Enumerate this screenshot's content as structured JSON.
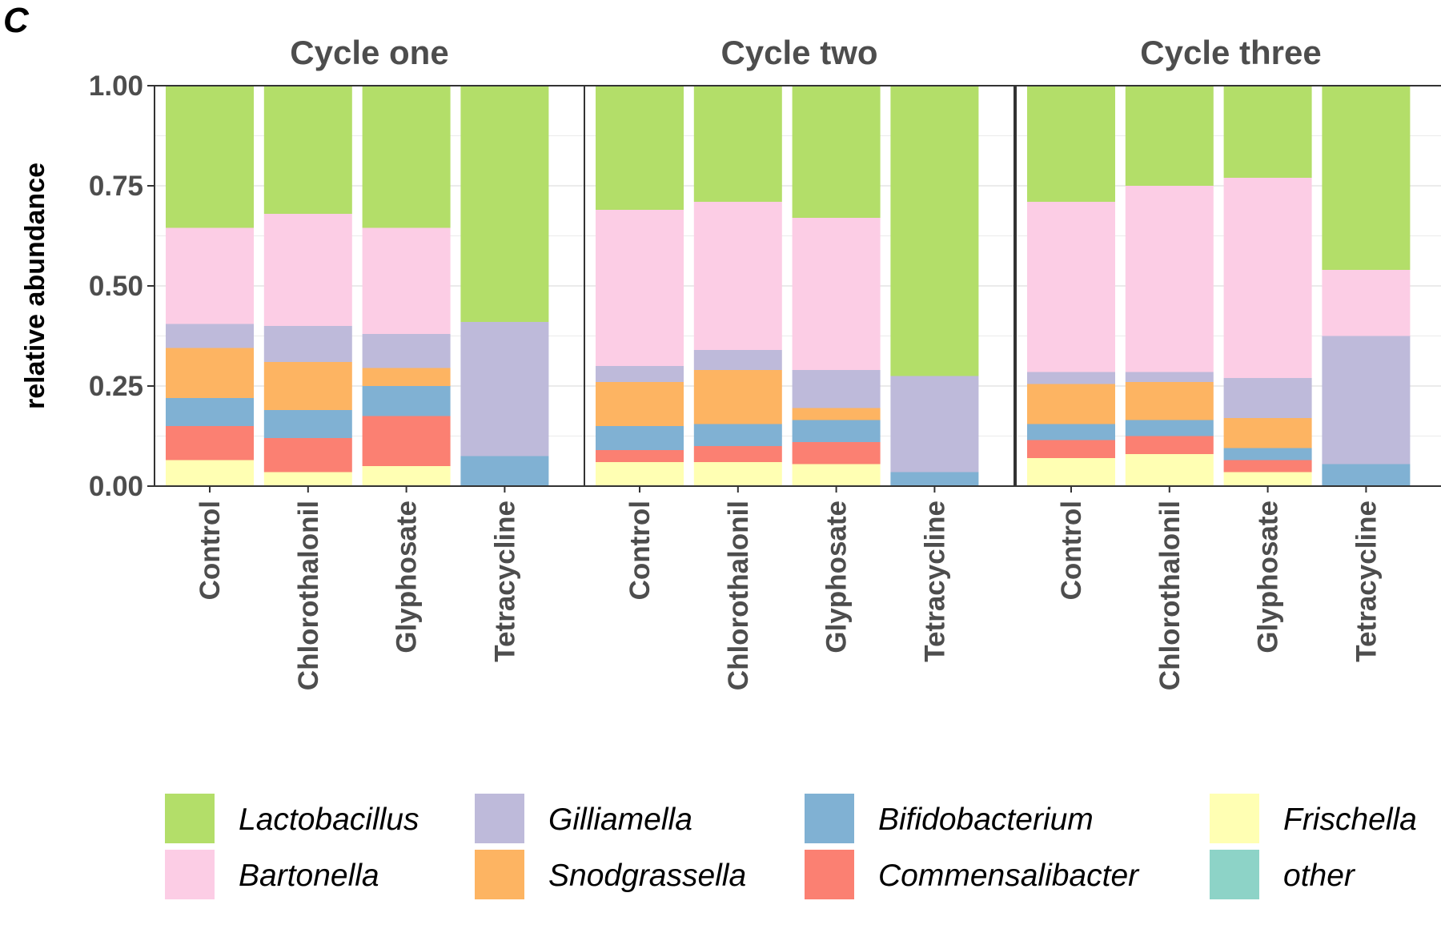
{
  "panel_letter": "C",
  "chart_data": {
    "type": "bar",
    "stacked": true,
    "ylabel": "relative abundance",
    "ylim": [
      0,
      1
    ],
    "yticks": [
      "0.00",
      "0.25",
      "0.50",
      "0.75",
      "1.00"
    ],
    "grid": true,
    "legend_position": "bottom",
    "categories": [
      "Control",
      "Chlorothalonil",
      "Glyphosate",
      "Tetracycline"
    ],
    "series_order": [
      "Frischella",
      "Commensalibacter",
      "Bifidobacterium",
      "Snodgrassella",
      "Gilliamella",
      "Bartonella",
      "Lactobacillus",
      "other"
    ],
    "colors": {
      "Lactobacillus": "#b3de69",
      "Bartonella": "#fccde5",
      "Gilliamella": "#bebada",
      "Snodgrassella": "#fdb462",
      "Bifidobacterium": "#80b1d3",
      "Commensalibacter": "#fb8072",
      "Frischella": "#ffffb3",
      "other": "#8dd3c7"
    },
    "facets": [
      {
        "title": "Cycle one",
        "bars": [
          {
            "Frischella": 0.065,
            "Commensalibacter": 0.085,
            "Bifidobacterium": 0.07,
            "Snodgrassella": 0.125,
            "Gilliamella": 0.06,
            "Bartonella": 0.24,
            "Lactobacillus": 0.355,
            "other": 0.0
          },
          {
            "Frischella": 0.035,
            "Commensalibacter": 0.085,
            "Bifidobacterium": 0.07,
            "Snodgrassella": 0.12,
            "Gilliamella": 0.09,
            "Bartonella": 0.28,
            "Lactobacillus": 0.32,
            "other": 0.0
          },
          {
            "Frischella": 0.05,
            "Commensalibacter": 0.125,
            "Bifidobacterium": 0.075,
            "Snodgrassella": 0.045,
            "Gilliamella": 0.085,
            "Bartonella": 0.265,
            "Lactobacillus": 0.355,
            "other": 0.0
          },
          {
            "Frischella": 0.0,
            "Commensalibacter": 0.0,
            "Bifidobacterium": 0.075,
            "Snodgrassella": 0.0,
            "Gilliamella": 0.335,
            "Bartonella": 0.0,
            "Lactobacillus": 0.59,
            "other": 0.0
          }
        ]
      },
      {
        "title": "Cycle two",
        "bars": [
          {
            "Frischella": 0.06,
            "Commensalibacter": 0.03,
            "Bifidobacterium": 0.06,
            "Snodgrassella": 0.11,
            "Gilliamella": 0.04,
            "Bartonella": 0.39,
            "Lactobacillus": 0.31,
            "other": 0.0
          },
          {
            "Frischella": 0.06,
            "Commensalibacter": 0.04,
            "Bifidobacterium": 0.055,
            "Snodgrassella": 0.135,
            "Gilliamella": 0.05,
            "Bartonella": 0.37,
            "Lactobacillus": 0.29,
            "other": 0.0
          },
          {
            "Frischella": 0.055,
            "Commensalibacter": 0.055,
            "Bifidobacterium": 0.055,
            "Snodgrassella": 0.03,
            "Gilliamella": 0.095,
            "Bartonella": 0.38,
            "Lactobacillus": 0.33,
            "other": 0.0
          },
          {
            "Frischella": 0.0,
            "Commensalibacter": 0.0,
            "Bifidobacterium": 0.035,
            "Snodgrassella": 0.0,
            "Gilliamella": 0.24,
            "Bartonella": 0.0,
            "Lactobacillus": 0.725,
            "other": 0.0
          }
        ]
      },
      {
        "title": "Cycle three",
        "bars": [
          {
            "Frischella": 0.07,
            "Commensalibacter": 0.045,
            "Bifidobacterium": 0.04,
            "Snodgrassella": 0.1,
            "Gilliamella": 0.03,
            "Bartonella": 0.425,
            "Lactobacillus": 0.29,
            "other": 0.0
          },
          {
            "Frischella": 0.08,
            "Commensalibacter": 0.045,
            "Bifidobacterium": 0.04,
            "Snodgrassella": 0.095,
            "Gilliamella": 0.025,
            "Bartonella": 0.465,
            "Lactobacillus": 0.25,
            "other": 0.0
          },
          {
            "Frischella": 0.035,
            "Commensalibacter": 0.03,
            "Bifidobacterium": 0.03,
            "Snodgrassella": 0.075,
            "Gilliamella": 0.1,
            "Bartonella": 0.5,
            "Lactobacillus": 0.23,
            "other": 0.0
          },
          {
            "Frischella": 0.0,
            "Commensalibacter": 0.0,
            "Bifidobacterium": 0.055,
            "Snodgrassella": 0.0,
            "Gilliamella": 0.32,
            "Bartonella": 0.165,
            "Lactobacillus": 0.46,
            "other": 0.0
          }
        ]
      }
    ],
    "legend": [
      "Lactobacillus",
      "Bartonella",
      "Gilliamella",
      "Snodgrassella",
      "Bifidobacterium",
      "Commensalibacter",
      "Frischella",
      "other"
    ]
  }
}
